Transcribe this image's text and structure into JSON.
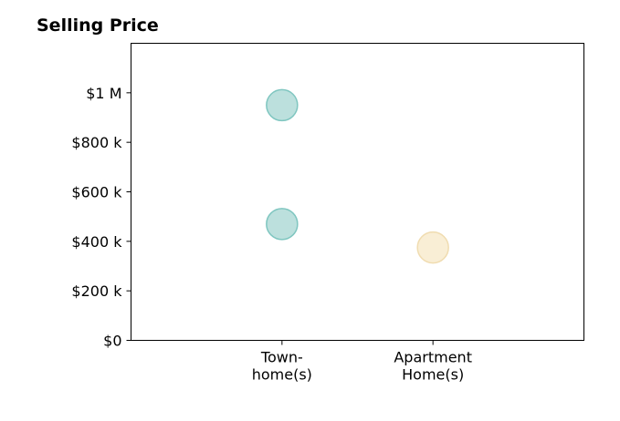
{
  "chart_data": {
    "type": "scatter",
    "title": "Selling Price",
    "xlabel": "",
    "ylabel": "",
    "categories": [
      "Town-\nhome(s)",
      "Apartment\nHome(s)"
    ],
    "category_slots": 3,
    "ylim": [
      0,
      1200000
    ],
    "y_ticks": [
      {
        "value": 0,
        "label": "$0"
      },
      {
        "value": 200000,
        "label": "$200 k"
      },
      {
        "value": 400000,
        "label": "$400 k"
      },
      {
        "value": 600000,
        "label": "$600 k"
      },
      {
        "value": 800000,
        "label": "$800 k"
      },
      {
        "value": 1000000,
        "label": "$1 M"
      }
    ],
    "grid": false,
    "legend": "none",
    "series": [
      {
        "color": "#9fd3cf",
        "stroke": "#7fc6c0",
        "points": [
          {
            "category": "Town-\nhome(s)",
            "y": 950000
          },
          {
            "category": "Town-\nhome(s)",
            "y": 470000
          }
        ]
      },
      {
        "color": "#f6e7c3",
        "stroke": "#f0dcb0",
        "points": [
          {
            "category": "Apartment\nHome(s)",
            "y": 375000
          }
        ]
      }
    ]
  }
}
